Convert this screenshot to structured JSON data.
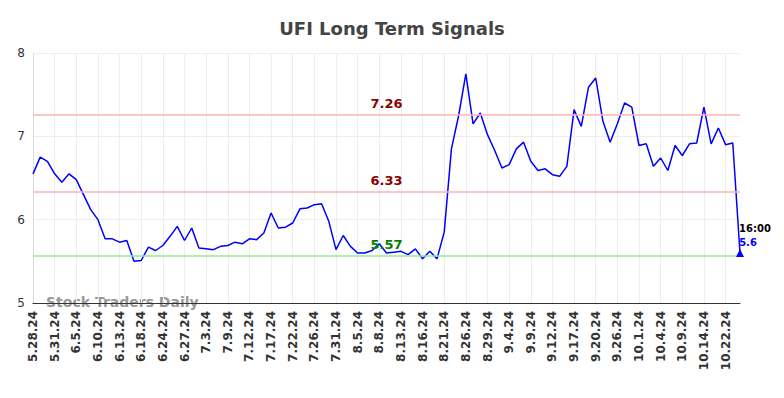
{
  "chart_data": {
    "type": "line",
    "title": "UFI Long Term Signals",
    "watermark": "Stock Traders Daily",
    "color": "#0000ff",
    "categories": [
      "5.28.24",
      null,
      null,
      "5.31.24",
      null,
      null,
      "6.5.24",
      null,
      null,
      "6.10.24",
      null,
      null,
      "6.13.24",
      null,
      null,
      "6.18.24",
      null,
      null,
      "6.24.24",
      null,
      null,
      "6.27.24",
      null,
      null,
      "7.3.24",
      null,
      null,
      "7.9.24",
      null,
      null,
      "7.12.24",
      null,
      null,
      "7.17.24",
      null,
      null,
      "7.22.24",
      null,
      null,
      "7.26.24",
      null,
      null,
      "7.31.24",
      null,
      null,
      "8.5.24",
      null,
      null,
      "8.8.24",
      null,
      null,
      "8.13.24",
      null,
      null,
      "8.16.24",
      null,
      null,
      "8.21.24",
      null,
      null,
      "8.26.24",
      null,
      null,
      "8.29.24",
      null,
      null,
      "9.4.24",
      null,
      null,
      "9.9.24",
      null,
      null,
      "9.12.24",
      null,
      null,
      "9.17.24",
      null,
      null,
      "9.20.24",
      null,
      null,
      "9.26.24",
      null,
      null,
      "10.1.24",
      null,
      null,
      "10.4.24",
      null,
      null,
      "10.9.24",
      null,
      null,
      "10.14.24",
      null,
      null,
      "10.22.24",
      null,
      null
    ],
    "values": [
      6.55,
      6.75,
      6.7,
      6.55,
      6.45,
      6.55,
      6.48,
      6.3,
      6.12,
      6.0,
      5.77,
      5.77,
      5.73,
      5.75,
      5.5,
      5.51,
      5.67,
      5.63,
      5.69,
      5.8,
      5.92,
      5.75,
      5.9,
      5.66,
      5.65,
      5.64,
      5.68,
      5.69,
      5.73,
      5.71,
      5.77,
      5.76,
      5.84,
      6.08,
      5.9,
      5.91,
      5.96,
      6.13,
      6.14,
      6.18,
      6.19,
      5.98,
      5.64,
      5.81,
      5.68,
      5.6,
      5.6,
      5.63,
      5.71,
      5.6,
      5.61,
      5.62,
      5.58,
      5.65,
      5.53,
      5.62,
      5.53,
      5.85,
      6.85,
      7.25,
      7.75,
      7.15,
      7.28,
      7.02,
      6.83,
      6.62,
      6.66,
      6.85,
      6.93,
      6.7,
      6.59,
      6.61,
      6.54,
      6.52,
      6.64,
      7.32,
      7.12,
      7.59,
      7.7,
      7.18,
      6.93,
      7.15,
      7.4,
      7.35,
      6.89,
      6.91,
      6.64,
      6.74,
      6.59,
      6.89,
      6.77,
      6.91,
      6.92,
      7.35,
      6.91,
      7.1,
      6.9,
      6.92,
      5.6
    ],
    "ylim": [
      5,
      8
    ],
    "yticks": [
      5,
      6,
      7,
      8
    ],
    "grid": true,
    "reference_lines": [
      {
        "value": 7.26,
        "color": "#ffb3b3",
        "label_color": "#8b0000"
      },
      {
        "value": 6.33,
        "color": "#ffb3b3",
        "label_color": "#8b0000"
      },
      {
        "value": 5.57,
        "color": "#90ee90",
        "label_color": "#008000"
      }
    ],
    "last_point_label": "16:00"
  }
}
